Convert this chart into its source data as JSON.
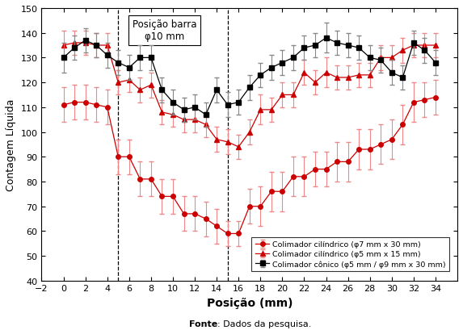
{
  "title_box": "Posição barra\nφ10 mm",
  "xlabel": "Posição (mm)",
  "ylabel": "Contagem Líquida",
  "fonte_bold": "Fonte",
  "fonte_rest": ": Dados da pesquisa.",
  "xlim": [
    -2,
    36
  ],
  "ylim": [
    40,
    150
  ],
  "xticks": [
    -2,
    0,
    2,
    4,
    6,
    8,
    10,
    12,
    14,
    16,
    18,
    20,
    22,
    24,
    26,
    28,
    30,
    32,
    34
  ],
  "yticks": [
    40,
    50,
    60,
    70,
    80,
    90,
    100,
    110,
    120,
    130,
    140,
    150
  ],
  "vlines": [
    5,
    15
  ],
  "series1_label": "Colimador cônico (φ5 mm / φ9 mm x 30 mm)",
  "series1_color": "#000000",
  "series1_ecolor": "#888888",
  "series1_marker": "s",
  "series1_x": [
    0,
    1,
    2,
    3,
    4,
    5,
    6,
    7,
    8,
    9,
    10,
    11,
    12,
    13,
    14,
    15,
    16,
    17,
    18,
    19,
    20,
    21,
    22,
    23,
    24,
    25,
    26,
    27,
    28,
    29,
    30,
    31,
    32,
    33,
    34
  ],
  "series1_y": [
    130,
    134,
    137,
    135,
    131,
    128,
    126,
    130,
    130,
    117,
    112,
    109,
    110,
    107,
    117,
    111,
    112,
    118,
    123,
    126,
    128,
    130,
    134,
    135,
    138,
    136,
    135,
    134,
    130,
    129,
    124,
    122,
    136,
    133,
    128
  ],
  "series1_yerr": [
    6,
    5,
    5,
    5,
    5,
    5,
    5,
    5,
    5,
    5,
    5,
    5,
    5,
    5,
    5,
    5,
    5,
    5,
    5,
    5,
    5,
    5,
    5,
    5,
    6,
    5,
    5,
    5,
    5,
    5,
    5,
    5,
    5,
    5,
    5
  ],
  "series2_label": "Colimador cilíndrico (φ5 mm x 15 mm)",
  "series2_color": "#cc0000",
  "series2_ecolor": "#ee8888",
  "series2_marker": "^",
  "series2_x": [
    0,
    1,
    2,
    3,
    4,
    5,
    6,
    7,
    8,
    9,
    10,
    11,
    12,
    13,
    14,
    15,
    16,
    17,
    18,
    19,
    20,
    21,
    22,
    23,
    24,
    25,
    26,
    27,
    28,
    29,
    30,
    31,
    32,
    33,
    34
  ],
  "series2_y": [
    135,
    136,
    136,
    135,
    135,
    120,
    121,
    117,
    119,
    108,
    107,
    105,
    105,
    103,
    97,
    96,
    94,
    100,
    109,
    109,
    115,
    115,
    124,
    120,
    124,
    122,
    122,
    123,
    123,
    130,
    130,
    133,
    135,
    135,
    135
  ],
  "series2_yerr": [
    6,
    5,
    5,
    5,
    5,
    5,
    5,
    5,
    5,
    5,
    5,
    5,
    5,
    5,
    5,
    5,
    5,
    5,
    6,
    5,
    5,
    5,
    5,
    5,
    6,
    5,
    5,
    5,
    5,
    5,
    5,
    5,
    5,
    5,
    5
  ],
  "series3_label": "Colimador cilíndrico (φ7 mm x 30 mm)",
  "series3_color": "#cc0000",
  "series3_ecolor": "#ee8888",
  "series3_marker": "o",
  "series3_x": [
    0,
    1,
    2,
    3,
    4,
    5,
    6,
    7,
    8,
    9,
    10,
    11,
    12,
    13,
    14,
    15,
    16,
    17,
    18,
    19,
    20,
    21,
    22,
    23,
    24,
    25,
    26,
    27,
    28,
    29,
    30,
    31,
    32,
    33,
    34
  ],
  "series3_y": [
    111,
    112,
    112,
    111,
    110,
    90,
    90,
    81,
    81,
    74,
    74,
    67,
    67,
    65,
    62,
    59,
    59,
    70,
    70,
    76,
    76,
    82,
    82,
    85,
    85,
    88,
    88,
    93,
    93,
    95,
    97,
    103,
    112,
    113,
    114
  ],
  "series3_yerr": [
    7,
    7,
    7,
    7,
    7,
    7,
    7,
    7,
    7,
    7,
    7,
    7,
    7,
    7,
    7,
    5,
    5,
    7,
    8,
    8,
    8,
    8,
    8,
    7,
    7,
    8,
    8,
    8,
    8,
    8,
    8,
    8,
    8,
    7,
    7
  ]
}
